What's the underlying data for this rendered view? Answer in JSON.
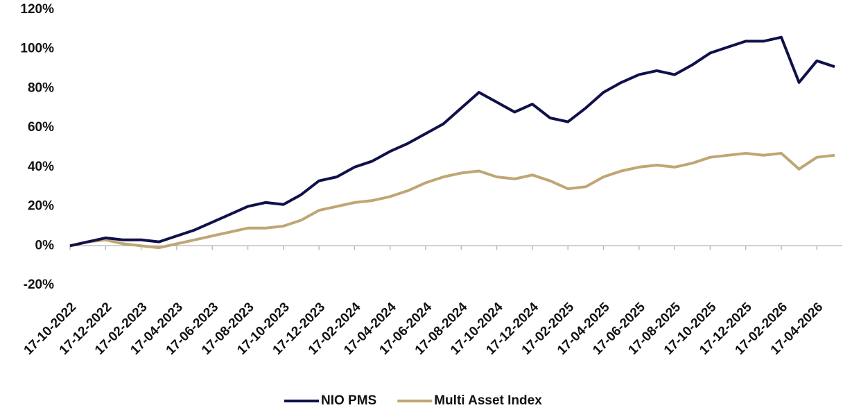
{
  "chart_data": {
    "type": "line",
    "categories": [
      "17-10-2022",
      null,
      "17-12-2022",
      null,
      "17-02-2023",
      null,
      "17-04-2023",
      null,
      "17-06-2023",
      null,
      "17-08-2023",
      null,
      "17-10-2023",
      null,
      "17-12-2023",
      null,
      "17-02-2024",
      null,
      "17-04-2024",
      null,
      "17-06-2024",
      null,
      "17-08-2024",
      null,
      "17-10-2024",
      null,
      "17-12-2024",
      null,
      "17-02-2025",
      null,
      "17-04-2025",
      null,
      "17-06-2025",
      null,
      "17-08-2025",
      null,
      "17-10-2025",
      null,
      "17-12-2025",
      null,
      "17-02-2026",
      null,
      "17-04-2026",
      null
    ],
    "series": [
      {
        "name": "NIO PMS",
        "color": "#10104a",
        "values": [
          0,
          2,
          4,
          3,
          3,
          2,
          5,
          8,
          12,
          16,
          20,
          22,
          21,
          26,
          33,
          35,
          40,
          43,
          48,
          52,
          57,
          62,
          70,
          78,
          73,
          68,
          72,
          65,
          63,
          70,
          78,
          83,
          87,
          89,
          87,
          92,
          98,
          101,
          104,
          104,
          106,
          83,
          94,
          91
        ]
      },
      {
        "name": "Multi Asset Index",
        "color": "#bfa674",
        "values": [
          0,
          2,
          3,
          1,
          0,
          -1,
          1,
          3,
          5,
          7,
          9,
          9,
          10,
          13,
          18,
          20,
          22,
          23,
          25,
          28,
          32,
          35,
          37,
          38,
          35,
          34,
          36,
          33,
          29,
          30,
          35,
          38,
          40,
          41,
          40,
          42,
          45,
          46,
          47,
          46,
          47,
          39,
          45,
          46
        ]
      }
    ],
    "ylim": [
      -20,
      120
    ],
    "yticks": [
      {
        "value": -20,
        "label": "-20%"
      },
      {
        "value": 0,
        "label": "0%"
      },
      {
        "value": 20,
        "label": "20%"
      },
      {
        "value": 40,
        "label": "40%"
      },
      {
        "value": 60,
        "label": "60%"
      },
      {
        "value": 80,
        "label": "80%"
      },
      {
        "value": 100,
        "label": "100%"
      },
      {
        "value": 120,
        "label": "120%"
      }
    ],
    "legend": "bottom"
  }
}
